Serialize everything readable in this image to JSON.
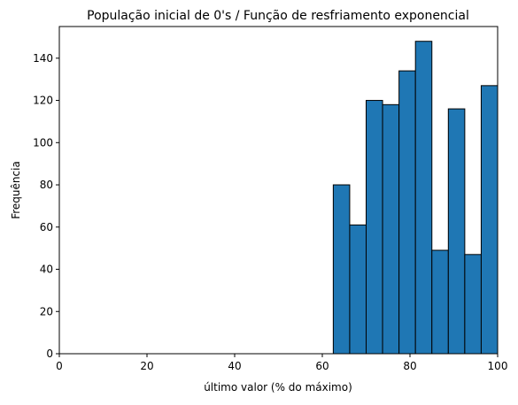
{
  "chart_data": {
    "type": "bar",
    "title": "População inicial de 0's / Função de resfriamento exponencial",
    "xlabel": "último valor (% do máximo)",
    "ylabel": "Frequência",
    "xlim": [
      0,
      100
    ],
    "ylim": [
      0,
      155
    ],
    "xticks": [
      0,
      20,
      40,
      60,
      80,
      100
    ],
    "yticks": [
      0,
      20,
      40,
      60,
      80,
      100,
      120,
      140
    ],
    "grid": false,
    "bar_color": "#1f77b4",
    "edge_color": "#000000",
    "bin_edges": [
      62.5,
      66.25,
      70.0,
      73.75,
      77.5,
      81.25,
      85.0,
      88.75,
      92.5,
      96.25,
      100.0
    ],
    "values": [
      80,
      61,
      120,
      118,
      134,
      148,
      49,
      116,
      47,
      127
    ]
  }
}
